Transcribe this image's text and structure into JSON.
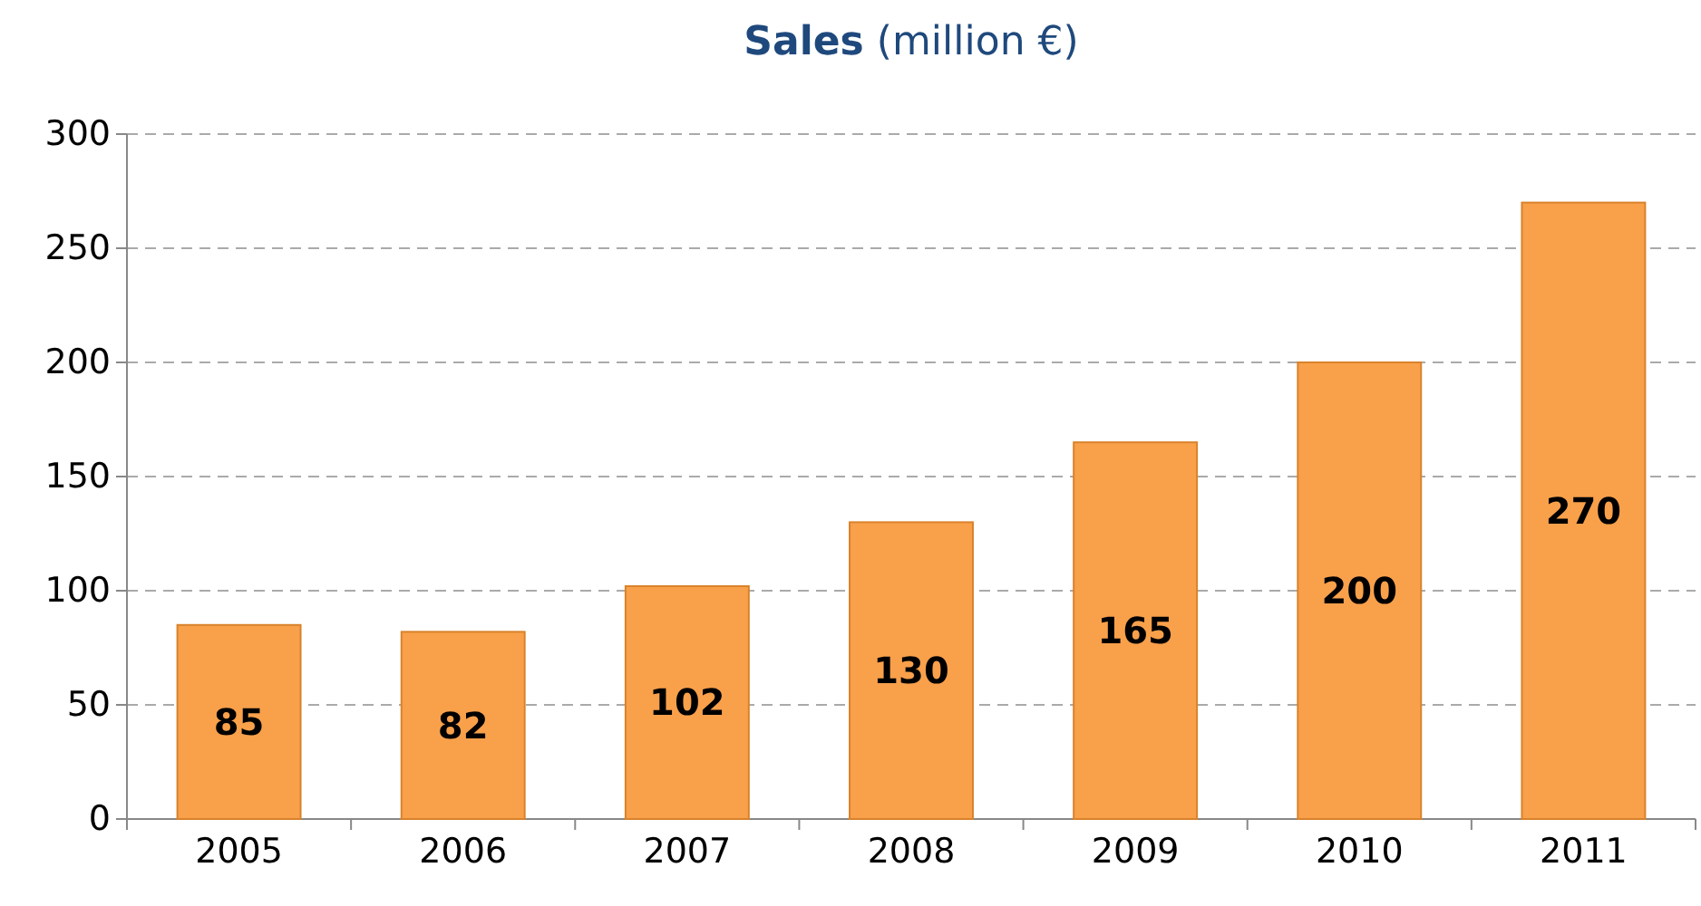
{
  "chart_data": {
    "type": "bar",
    "title": "Sales (million €)",
    "categories": [
      "2005",
      "2006",
      "2007",
      "2008",
      "2009",
      "2010",
      "2011"
    ],
    "values": [
      85,
      82,
      102,
      130,
      165,
      200,
      270
    ],
    "color": "#f9a04b",
    "ylim": [
      0,
      300
    ],
    "yticks": [
      0,
      50,
      100,
      150,
      200,
      250,
      300
    ],
    "grid": "y",
    "data_labels": true
  }
}
